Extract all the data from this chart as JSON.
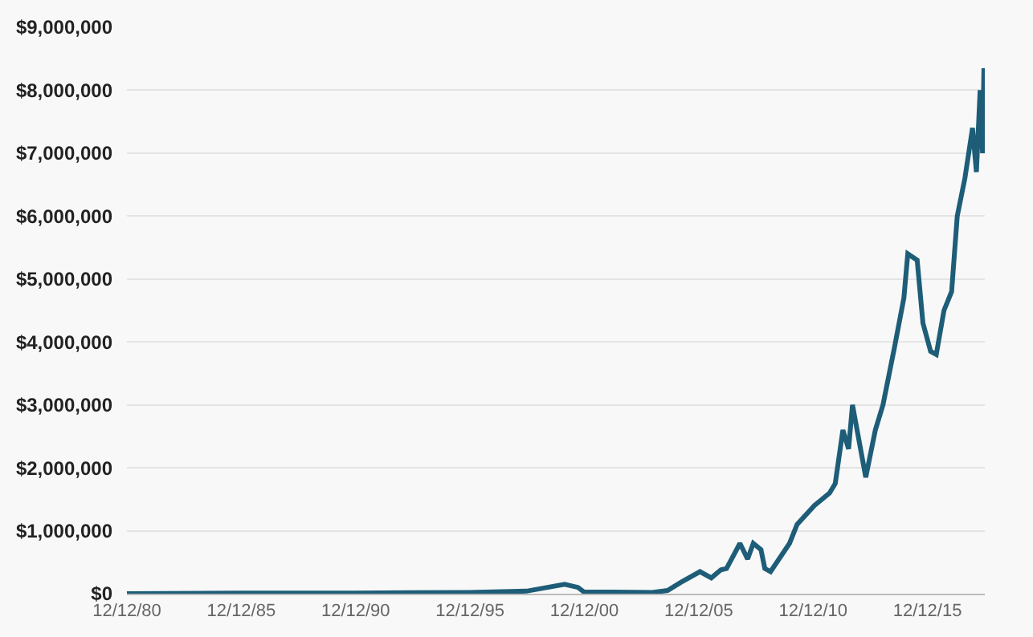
{
  "chart_data": {
    "type": "line",
    "x": [
      "1980-12-12",
      "1985-12",
      "1990-12",
      "1995-12",
      "1998-06",
      "2000-02",
      "2000-09",
      "2000-12",
      "2003-12",
      "2004-08",
      "2005-03",
      "2006-01",
      "2006-07",
      "2006-12",
      "2007-03",
      "2007-10",
      "2008-02",
      "2008-05",
      "2008-09",
      "2008-11",
      "2009-02",
      "2009-12",
      "2010-04",
      "2011-01",
      "2011-09",
      "2011-12",
      "2012-04",
      "2012-07",
      "2012-09",
      "2013-04",
      "2013-09",
      "2014-01",
      "2014-07",
      "2014-12",
      "2015-02",
      "2015-07",
      "2015-10",
      "2016-02",
      "2016-05",
      "2016-09",
      "2017-01",
      "2017-04",
      "2017-08",
      "2017-12",
      "2018-02",
      "2018-04",
      "2018-05-10",
      "2018-06-01"
    ],
    "series": [
      {
        "color": "#1e5d78",
        "values": [
          0,
          10000,
          10000,
          20000,
          40000,
          150000,
          100000,
          30000,
          20000,
          50000,
          180000,
          350000,
          250000,
          380000,
          400000,
          800000,
          550000,
          800000,
          700000,
          400000,
          350000,
          800000,
          1100000,
          1400000,
          1600000,
          1750000,
          2600000,
          2300000,
          3000000,
          1850000,
          2600000,
          3000000,
          3900000,
          4700000,
          5400000,
          5300000,
          4300000,
          3850000,
          3800000,
          4500000,
          4800000,
          6000000,
          6600000,
          7400000,
          6700000,
          8000000,
          7000000,
          8350000
        ]
      }
    ],
    "xlim": [
      "1980-12-12",
      "2018-06-15"
    ],
    "xticks": [
      {
        "value": "1980-12-12",
        "label": "12/12/80"
      },
      {
        "value": "1985-12-12",
        "label": "12/12/85"
      },
      {
        "value": "1990-12-12",
        "label": "12/12/90"
      },
      {
        "value": "1995-12-12",
        "label": "12/12/95"
      },
      {
        "value": "2000-12-12",
        "label": "12/12/00"
      },
      {
        "value": "2005-12-12",
        "label": "12/12/05"
      },
      {
        "value": "2010-12-12",
        "label": "12/12/10"
      },
      {
        "value": "2015-12-12",
        "label": "12/12/15"
      }
    ],
    "ylim": [
      0,
      9000000
    ],
    "yticks": [
      {
        "value": 0,
        "label": "$0"
      },
      {
        "value": 1000000,
        "label": "$1,000,000"
      },
      {
        "value": 2000000,
        "label": "$2,000,000"
      },
      {
        "value": 3000000,
        "label": "$3,000,000"
      },
      {
        "value": 4000000,
        "label": "$4,000,000"
      },
      {
        "value": 5000000,
        "label": "$5,000,000"
      },
      {
        "value": 6000000,
        "label": "$6,000,000"
      },
      {
        "value": 7000000,
        "label": "$7,000,000"
      },
      {
        "value": 8000000,
        "label": "$8,000,000"
      },
      {
        "value": 9000000,
        "label": "$9,000,000"
      }
    ],
    "grid": "y",
    "marker": "none",
    "line_style": "solid"
  }
}
